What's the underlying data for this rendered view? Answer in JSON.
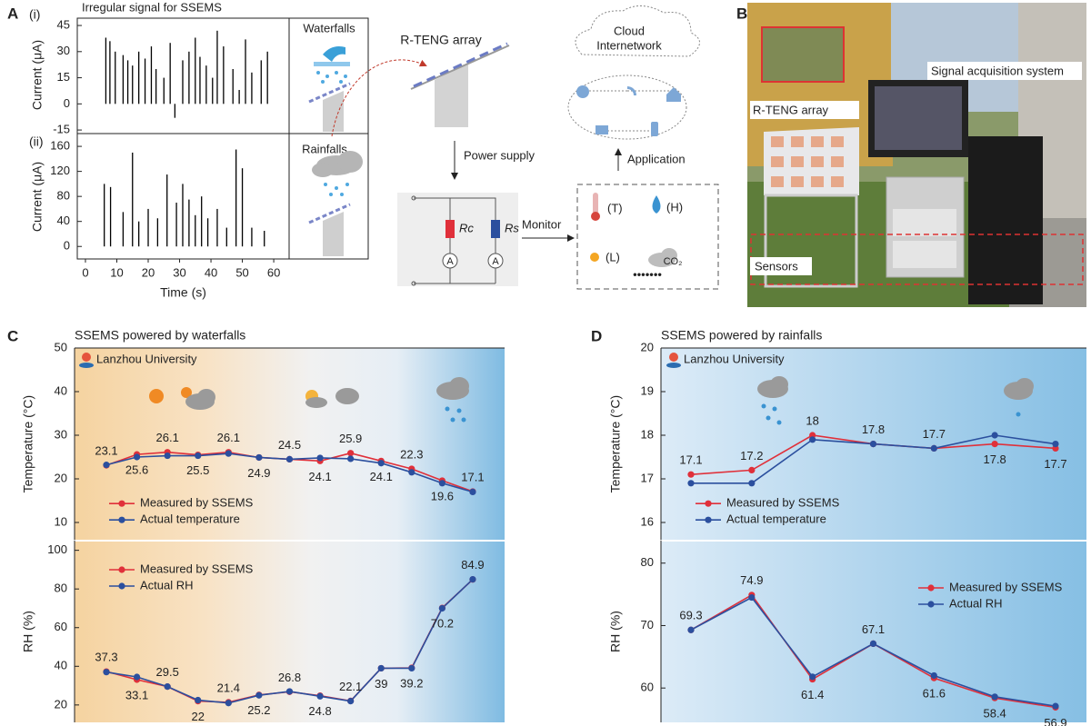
{
  "panel_labels": [
    "A",
    "B",
    "C",
    "D"
  ],
  "panel_a": {
    "sub_labels": [
      "(i)",
      "(ii)"
    ],
    "waterfalls": "Waterfalls",
    "rainfalls": "Rainfalls",
    "array_title": "R-TENG array",
    "power_supply": "Power supply",
    "monitor": "Monitor",
    "application": "Application",
    "cloud": [
      "Cloud",
      "Internetwork"
    ],
    "resistors": [
      "Rc",
      "Rs"
    ],
    "meters": [
      "A",
      "A"
    ],
    "sensors": [
      "(T)",
      "(H)",
      "(L)",
      "CO₂"
    ],
    "more": "•••••••"
  },
  "panel_b": {
    "labels": [
      "Signal acquisition system",
      "R-TENG array",
      "Sensors"
    ]
  },
  "chart_data": [
    {
      "type": "spike",
      "title": "Irregular signal for SSEMS",
      "ylabel": "Current (μA)",
      "color": "#000000",
      "xlim": [
        -2.6,
        64.9
      ],
      "ylim": [
        -16,
        49.2
      ],
      "yticks": [
        -15,
        0,
        15,
        30,
        45
      ],
      "x": [
        6.5,
        7.8,
        9.5,
        12,
        13.5,
        15,
        17,
        19,
        21,
        22.5,
        25,
        27,
        28.5,
        31,
        33,
        35,
        36.5,
        38.5,
        40.5,
        42,
        44,
        47,
        49,
        51,
        53,
        56,
        58
      ],
      "values": [
        38,
        36,
        30,
        28,
        25,
        22,
        30,
        26,
        33,
        20,
        15,
        35,
        -8,
        25,
        30,
        38,
        27,
        22,
        15,
        42,
        33,
        20,
        8,
        37,
        18,
        25,
        30
      ]
    },
    {
      "type": "spike",
      "ylabel": "Current (μA)",
      "xlabel": "Time (s)",
      "color": "#000000",
      "xlim": [
        -2.6,
        64.9
      ],
      "xticks": [
        0,
        10,
        20,
        30,
        40,
        50,
        60
      ],
      "ylim": [
        -20,
        179
      ],
      "yticks": [
        0,
        40,
        80,
        120,
        160
      ],
      "x": [
        6,
        8,
        12,
        15,
        17,
        20,
        23,
        26,
        29,
        31,
        33,
        35,
        37,
        39,
        42,
        45,
        48,
        50,
        53,
        57
      ],
      "values": [
        100,
        95,
        55,
        150,
        40,
        60,
        45,
        115,
        70,
        100,
        75,
        50,
        80,
        45,
        60,
        30,
        155,
        125,
        30,
        25
      ]
    },
    {
      "type": "line",
      "title": "SSEMS powered by waterfalls",
      "annotation": "Lanzhou University",
      "ylabel": "Temperature (°C)",
      "categories": [
        null,
        null,
        null,
        null,
        null,
        null,
        null,
        null,
        null,
        null,
        null,
        null,
        null
      ],
      "series": [
        {
          "name": "Measured by SSEMS",
          "color": "#e0303a",
          "values": [
            23.1,
            25.6,
            26.1,
            25.5,
            26.1,
            24.9,
            24.5,
            24.1,
            25.9,
            24.1,
            22.3,
            19.6,
            17.1
          ]
        },
        {
          "name": "Actual temperature",
          "color": "#2b4f9e",
          "values": [
            23.2,
            25.0,
            25.3,
            25.3,
            25.8,
            24.9,
            24.5,
            24.8,
            24.6,
            23.6,
            21.5,
            19.0,
            17.0
          ]
        }
      ],
      "ylim": [
        6,
        50
      ],
      "yticks": [
        10,
        20,
        30,
        40,
        50
      ],
      "legend": "lower left"
    },
    {
      "type": "line",
      "ylabel": "RH (%)",
      "categories": [
        null,
        null,
        null,
        null,
        null,
        null,
        null,
        null,
        null,
        null,
        null,
        null,
        null
      ],
      "series": [
        {
          "name": "Measured by SSEMS",
          "color": "#e0303a",
          "values": [
            37.3,
            33.1,
            29.5,
            22,
            21.4,
            25.2,
            26.8,
            24.8,
            22.1,
            39,
            39.2,
            70.2,
            84.9
          ]
        },
        {
          "name": "Actual RH",
          "color": "#2b4f9e",
          "values": [
            37,
            34.5,
            29.5,
            22.5,
            21,
            25,
            27,
            24.5,
            22,
            39,
            39,
            70,
            85
          ]
        }
      ],
      "ylim": [
        11,
        105
      ],
      "yticks": [
        20,
        40,
        60,
        80,
        100
      ],
      "legend": "upper left"
    },
    {
      "type": "line",
      "title": "SSEMS powered by rainfalls",
      "annotation": "Lanzhou University",
      "ylabel": "Temperature (°C)",
      "categories": [
        null,
        null,
        null,
        null,
        null,
        null,
        null
      ],
      "series": [
        {
          "name": "Measured by SSEMS",
          "color": "#e0303a",
          "values": [
            17.1,
            17.2,
            18,
            17.8,
            17.7,
            17.8,
            17.7
          ]
        },
        {
          "name": "Actual temperature",
          "color": "#2b4f9e",
          "values": [
            16.9,
            16.9,
            17.9,
            17.8,
            17.7,
            18.0,
            17.8
          ]
        }
      ],
      "ylim": [
        15.6,
        20
      ],
      "yticks": [
        16,
        17,
        18,
        19,
        20
      ],
      "legend": "lower left"
    },
    {
      "type": "line",
      "ylabel": "RH (%)",
      "categories": [
        null,
        null,
        null,
        null,
        null,
        null,
        null
      ],
      "series": [
        {
          "name": "Measured by SSEMS",
          "color": "#e0303a",
          "values": [
            69.3,
            74.9,
            61.4,
            67.1,
            61.6,
            58.4,
            56.9
          ]
        },
        {
          "name": "Actual RH",
          "color": "#2b4f9e",
          "values": [
            69.3,
            74.5,
            61.8,
            67.1,
            62,
            58.6,
            57.1
          ]
        }
      ],
      "ylim": [
        54.5,
        83.6
      ],
      "yticks": [
        60,
        70,
        80
      ],
      "legend": "upper right"
    }
  ]
}
